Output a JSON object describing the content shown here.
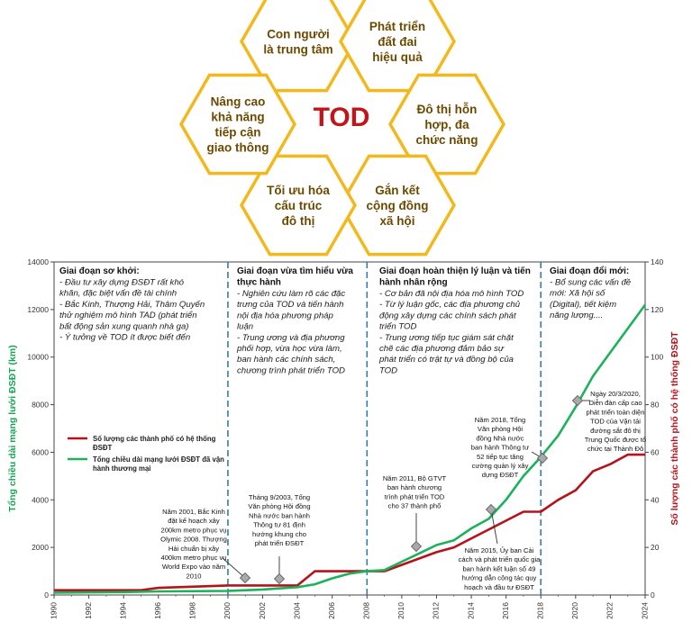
{
  "diagram": {
    "center": "TOD",
    "hexagons": [
      {
        "lines": [
          "Con người",
          "là trung tâm"
        ]
      },
      {
        "lines": [
          "Phát triển",
          "đất đai",
          "hiệu quả"
        ]
      },
      {
        "lines": [
          "Đô thị hỗn",
          "hợp, đa",
          "chức năng"
        ]
      },
      {
        "lines": [
          "Gắn kết",
          "cộng đồng",
          "xã hội"
        ]
      },
      {
        "lines": [
          "Tối ưu hóa",
          "cấu trúc",
          "đô thị"
        ]
      },
      {
        "lines": [
          "Nâng cao",
          "khả năng",
          "tiếp cận",
          "giao thông"
        ]
      }
    ],
    "colors": {
      "border": "#f2b81c",
      "center_text": "#c0161a",
      "hex_text": "#6b4a00"
    }
  },
  "chart_data": {
    "type": "line",
    "xlim": [
      1990,
      2024
    ],
    "x_ticks": [
      1990,
      1992,
      1994,
      1996,
      1998,
      2000,
      2002,
      2004,
      2006,
      2008,
      2010,
      2012,
      2014,
      2016,
      2018,
      2020,
      2022,
      2024
    ],
    "y_left": {
      "label": "Tổng chiều dài mạng lưới ĐSĐT (km)",
      "lim": [
        0,
        14000
      ],
      "ticks": [
        0,
        2000,
        4000,
        6000,
        8000,
        10000,
        12000,
        14000
      ]
    },
    "y_right": {
      "label": "Số lượng các thành phố có hệ thống ĐSĐT",
      "lim": [
        0,
        140
      ],
      "ticks": [
        0,
        20,
        40,
        60,
        80,
        100,
        120,
        140
      ]
    },
    "dividers": [
      2000,
      2008,
      2018
    ],
    "series": [
      {
        "name": "Số lượng các thành phố có hệ thống ĐSĐT",
        "axis": "right",
        "color": "#b5121b",
        "x": [
          1990,
          1995,
          1996,
          2000,
          2004,
          2005,
          2009,
          2012,
          2013,
          2017,
          2018,
          2019,
          2020,
          2021,
          2022,
          2023,
          2024
        ],
        "y": [
          2,
          2,
          3,
          4,
          4,
          10,
          10,
          18,
          20,
          35,
          35,
          40,
          44,
          52,
          55,
          59,
          59
        ]
      },
      {
        "name": "Tổng chiều dài mạng lưới ĐSĐT đã vận hành thương mại",
        "axis": "left",
        "color": "#1ab35a",
        "x": [
          1990,
          1994,
          1996,
          2000,
          2002,
          2004,
          2005,
          2006,
          2007,
          2008,
          2009,
          2010,
          2011,
          2012,
          2013,
          2014,
          2015,
          2016,
          2017,
          2018,
          2019,
          2020,
          2021,
          2022,
          2023,
          2024
        ],
        "y": [
          100,
          120,
          150,
          170,
          230,
          330,
          450,
          700,
          900,
          1000,
          1050,
          1400,
          1750,
          2100,
          2300,
          2800,
          3200,
          4000,
          5000,
          5800,
          6700,
          7900,
          9200,
          10200,
          11200,
          12200
        ]
      }
    ],
    "phases": [
      {
        "title": "Giai đoạn sơ khởi:",
        "items": [
          "- Đầu tư xây dựng ĐSĐT rất khó",
          "khăn, đặc biệt vấn đề tài chính",
          "- Bắc Kinh, Thượng Hải, Thâm Quyến",
          "thử nghiệm mô hình TAD (phát triển",
          "bất động sản xung quanh nhà ga)",
          "- Ý tưởng về TOD ít được biết đến"
        ]
      },
      {
        "title": "Giai đoạn vừa tìm hiểu vừa|thực hành",
        "items": [
          "- Nghiên cứu làm rõ các đặc",
          "trưng của TOD và tiến hành",
          "nội địa hóa phương pháp",
          "luận",
          "- Trung ương và địa phương",
          "phối hợp, vừa học vừa làm,",
          "ban hành các chính sách,",
          "chương trình phát triển TOD"
        ]
      },
      {
        "title": "Giai đoạn hoàn thiện lý luận và  tiến|hành nhân rộng",
        "items": [
          "- Cơ bản đã nội địa hóa mô hình TOD",
          "- Từ lý luận gốc, các địa phương chủ",
          "động xây dựng các chính sách phát",
          "triển TOD",
          "- Trung ương tiếp tục giám sát chặt",
          "chẽ các địa phương đảm bảo sự",
          "phát triển có trật tự và đồng bộ của",
          "TOD"
        ]
      },
      {
        "title": "Giai đoạn đổi mới:",
        "items": [
          "- Bổ sung các vấn đề",
          "mới: Xã hội số",
          "(Digital), tiết kiệm",
          "năng lượng...."
        ]
      }
    ],
    "annotations": [
      {
        "year": 2001,
        "lines": [
          "Năm 2001, Bắc Kinh",
          "đặt kế hoạch xây",
          "200km metro phục vụ",
          "Olymic 2008. Thượng",
          "Hải chuẩn bị xây",
          "400km metro phục vụ",
          "World Expo vào năm",
          "2010"
        ]
      },
      {
        "year": 2003,
        "lines": [
          "Tháng 9/2003, Tổng",
          "Văn phòng Hội đồng",
          "Nhà nước ban hành",
          "Thông tư 81 định",
          "hướng khung cho",
          "phát triển ĐSĐT"
        ]
      },
      {
        "year": 2011,
        "lines": [
          "Năm 2011, Bộ GTVT",
          "ban hành chương",
          "trình phát triển TOD",
          "cho 37 thành phố"
        ]
      },
      {
        "year": 2015,
        "lines": [
          "Năm 2015, Ủy ban Cải",
          "cách và phát triển quốc gia",
          "ban hành kết luận số 49",
          "hướng dẫn công tác quy",
          "hoạch và đầu tư ĐSĐT"
        ]
      },
      {
        "year": 2018,
        "lines": [
          "Năm 2018, Tổng",
          "Văn phòng Hội",
          "đồng Nhà nước",
          "ban hành Thông tư",
          "52 tiếp tục tăng",
          "cường quản lý xây",
          "dựng ĐSĐT"
        ]
      },
      {
        "year": 2020,
        "lines": [
          "Ngày 20/3/2020,",
          "Diễn đàn cấp cao",
          "phát triển toàn diện",
          "TOD của Vận tải",
          "đường sắt đô thị",
          "Trung Quốc được tổ",
          "chức tại Thành Đô"
        ]
      }
    ]
  }
}
